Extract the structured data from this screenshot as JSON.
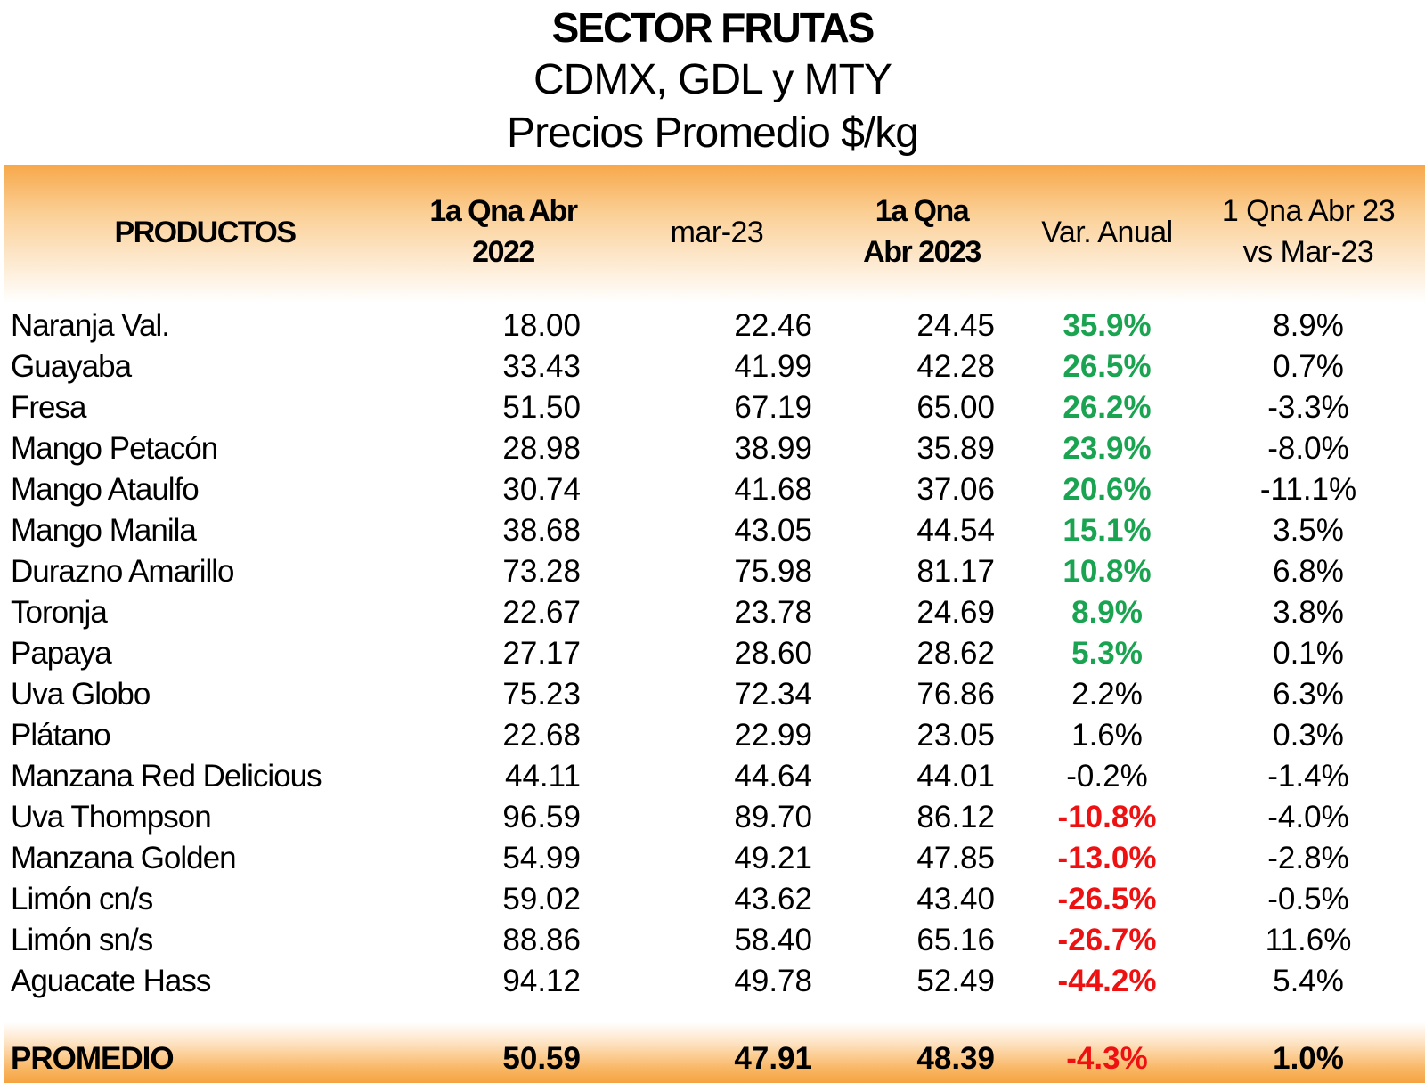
{
  "title": "SECTOR FRUTAS",
  "subtitle1": "CDMX, GDL y MTY",
  "subtitle2": "Precios Promedio $/kg",
  "headers": {
    "productos": "PRODUCTOS",
    "col1_line1": "1a Qna Abr",
    "col1_line2": "2022",
    "col2": "mar-23",
    "col3_line1": "1a Qna",
    "col3_line2": "Abr 2023",
    "col4": "Var. Anual",
    "col5_line1": "1 Qna Abr 23",
    "col5_line2": "vs Mar-23"
  },
  "colors": {
    "positive": "#1aa350",
    "negative": "#ee1111",
    "band": "#f7a84a"
  },
  "chart_data": {
    "type": "table",
    "columns": [
      "PRODUCTOS",
      "1a Qna Abr 2022",
      "mar-23",
      "1a Qna Abr 2023",
      "Var. Anual",
      "1 Qna Abr 23 vs Mar-23"
    ],
    "rows": [
      {
        "name": "Naranja Val.",
        "v2022": "18.00",
        "mar23": "22.46",
        "v2023": "24.45",
        "var": "35.9%",
        "mom": "8.9%",
        "style": "pos"
      },
      {
        "name": "Guayaba",
        "v2022": "33.43",
        "mar23": "41.99",
        "v2023": "42.28",
        "var": "26.5%",
        "mom": "0.7%",
        "style": "pos"
      },
      {
        "name": "Fresa",
        "v2022": "51.50",
        "mar23": "67.19",
        "v2023": "65.00",
        "var": "26.2%",
        "mom": "-3.3%",
        "style": "pos"
      },
      {
        "name": "Mango Petacón",
        "v2022": "28.98",
        "mar23": "38.99",
        "v2023": "35.89",
        "var": "23.9%",
        "mom": "-8.0%",
        "style": "pos"
      },
      {
        "name": "Mango Ataulfo",
        "v2022": "30.74",
        "mar23": "41.68",
        "v2023": "37.06",
        "var": "20.6%",
        "mom": "-11.1%",
        "style": "pos"
      },
      {
        "name": "Mango Manila",
        "v2022": "38.68",
        "mar23": "43.05",
        "v2023": "44.54",
        "var": "15.1%",
        "mom": "3.5%",
        "style": "pos"
      },
      {
        "name": "Durazno Amarillo",
        "v2022": "73.28",
        "mar23": "75.98",
        "v2023": "81.17",
        "var": "10.8%",
        "mom": "6.8%",
        "style": "pos"
      },
      {
        "name": "Toronja",
        "v2022": "22.67",
        "mar23": "23.78",
        "v2023": "24.69",
        "var": "8.9%",
        "mom": "3.8%",
        "style": "pos"
      },
      {
        "name": "Papaya",
        "v2022": "27.17",
        "mar23": "28.60",
        "v2023": "28.62",
        "var": "5.3%",
        "mom": "0.1%",
        "style": "pos"
      },
      {
        "name": "Uva Globo",
        "v2022": "75.23",
        "mar23": "72.34",
        "v2023": "76.86",
        "var": "2.2%",
        "mom": "6.3%",
        "style": ""
      },
      {
        "name": "Plátano",
        "v2022": "22.68",
        "mar23": "22.99",
        "v2023": "23.05",
        "var": "1.6%",
        "mom": "0.3%",
        "style": ""
      },
      {
        "name": "Manzana Red Delicious",
        "v2022": "44.11",
        "mar23": "44.64",
        "v2023": "44.01",
        "var": "-0.2%",
        "mom": "-1.4%",
        "style": ""
      },
      {
        "name": "Uva Thompson",
        "v2022": "96.59",
        "mar23": "89.70",
        "v2023": "86.12",
        "var": "-10.8%",
        "mom": "-4.0%",
        "style": "neg"
      },
      {
        "name": "Manzana Golden",
        "v2022": "54.99",
        "mar23": "49.21",
        "v2023": "47.85",
        "var": "-13.0%",
        "mom": "-2.8%",
        "style": "neg"
      },
      {
        "name": "Limón cn/s",
        "v2022": "59.02",
        "mar23": "43.62",
        "v2023": "43.40",
        "var": "-26.5%",
        "mom": "-0.5%",
        "style": "neg"
      },
      {
        "name": "Limón sn/s",
        "v2022": "88.86",
        "mar23": "58.40",
        "v2023": "65.16",
        "var": "-26.7%",
        "mom": "11.6%",
        "style": "neg"
      },
      {
        "name": "Aguacate Hass",
        "v2022": "94.12",
        "mar23": "49.78",
        "v2023": "52.49",
        "var": "-44.2%",
        "mom": "5.4%",
        "style": "neg"
      }
    ],
    "footer": {
      "name": "PROMEDIO",
      "v2022": "50.59",
      "mar23": "47.91",
      "v2023": "48.39",
      "var": "-4.3%",
      "mom": "1.0%"
    }
  }
}
